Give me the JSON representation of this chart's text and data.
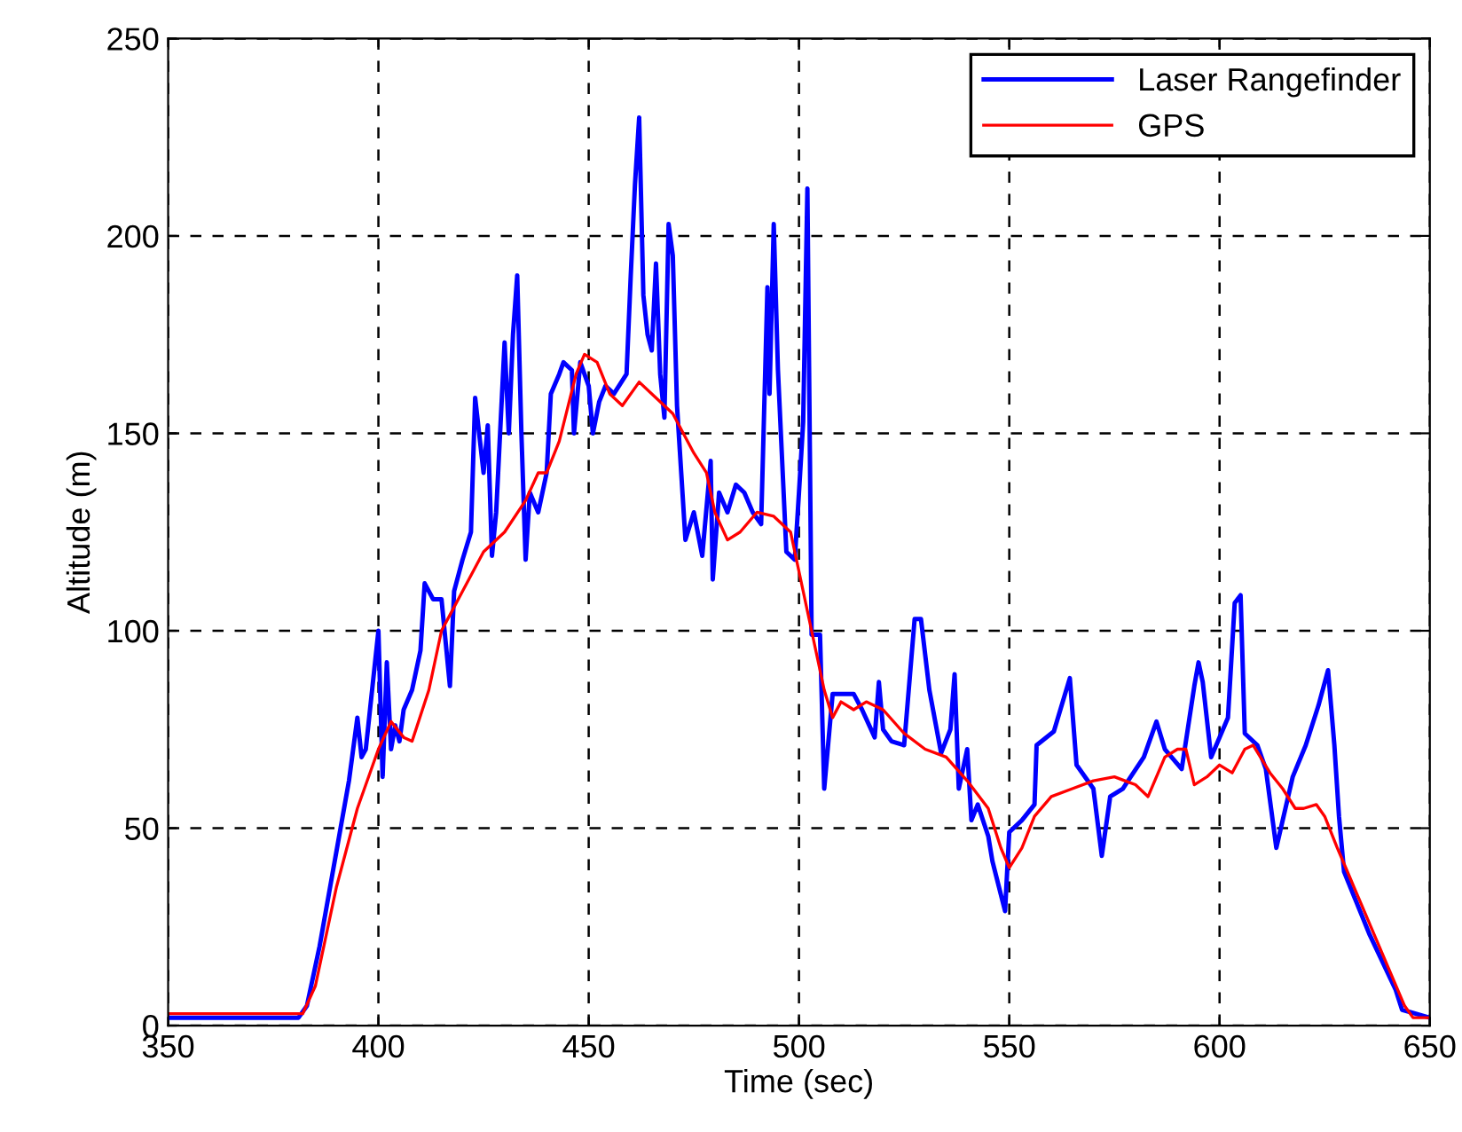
{
  "chart_data": {
    "type": "line",
    "xlabel": "Time (sec)",
    "ylabel": "Altitude (m)",
    "xlim": [
      350,
      650
    ],
    "xticks": [
      350,
      400,
      450,
      500,
      550,
      600,
      650
    ],
    "ylim": [
      0,
      250
    ],
    "yticks": [
      0,
      50,
      100,
      150,
      200,
      250
    ],
    "grid": true,
    "legend": "top right",
    "marker": "none",
    "line_style": "solid",
    "series": [
      {
        "name": "Laser Rangefinder",
        "color": "#0000ff",
        "x": [
          350,
          365,
          381,
          383,
          386,
          389,
          391,
          393,
          394,
          395,
          396,
          397,
          398,
          399,
          400,
          401,
          402,
          403,
          404,
          405,
          406,
          408,
          410,
          411,
          413,
          415,
          417,
          418,
          420,
          422,
          423,
          425,
          426,
          427,
          428,
          430,
          431,
          432,
          433,
          434,
          435,
          436,
          438,
          440,
          441,
          443,
          444,
          446,
          446.5,
          448,
          450,
          451,
          452.5,
          454,
          456,
          459,
          460,
          461,
          462,
          463,
          464,
          465,
          466,
          467,
          468,
          469,
          470,
          471,
          473,
          475,
          477,
          479,
          479.5,
          481,
          483,
          485,
          487,
          489,
          491,
          492.5,
          493,
          494,
          495,
          497,
          499,
          500,
          501,
          502,
          503,
          505,
          506,
          508,
          510,
          513,
          515,
          518,
          519,
          520,
          522,
          525,
          527.5,
          529,
          531,
          533.8,
          536,
          537,
          538,
          540,
          541,
          542.5,
          545,
          546,
          549,
          550,
          553,
          556,
          556.5,
          560.6,
          564.4,
          566,
          570,
          572,
          574,
          577,
          582,
          585,
          587,
          591,
          594,
          595,
          596,
          598,
          602,
          603.6,
          605,
          606,
          609,
          611,
          613.5,
          617.4,
          620.5,
          623.5,
          625.8,
          627.3,
          628.4,
          629.6,
          635.7,
          641.9,
          643.4,
          650
        ],
        "values": [
          2,
          2,
          2,
          5,
          20,
          38,
          50,
          62,
          70,
          78,
          68,
          70,
          80,
          90,
          100,
          63,
          92,
          70,
          76,
          72,
          80,
          85,
          95,
          112,
          108,
          108,
          86,
          110,
          118,
          125,
          159,
          140,
          152,
          119,
          130,
          173,
          150,
          175,
          190,
          150,
          118,
          135,
          130,
          140,
          160,
          165,
          168,
          166,
          150,
          168,
          162,
          150,
          158,
          162,
          160,
          165,
          190,
          213,
          230,
          185,
          175,
          171,
          193,
          165,
          154,
          203,
          195,
          157,
          123,
          130,
          119,
          143,
          113,
          135,
          130,
          137,
          135,
          130,
          127,
          187,
          160,
          203,
          166,
          120,
          118,
          135,
          153,
          212,
          99,
          99,
          60,
          84,
          84,
          84,
          80,
          73,
          87,
          75,
          72,
          71,
          103,
          103,
          85,
          69,
          75,
          89,
          60,
          70,
          52,
          56,
          48,
          41.6,
          29,
          49,
          52,
          56,
          71,
          74.5,
          88,
          66,
          60,
          43,
          58,
          60,
          68,
          77,
          70,
          65,
          86,
          92,
          87,
          68,
          78,
          107,
          109,
          74,
          71,
          65,
          45,
          63,
          71,
          81,
          90,
          71,
          53,
          39,
          23,
          9,
          4,
          2
        ]
      },
      {
        "name": "GPS",
        "color": "#ff0000",
        "x": [
          350,
          380,
          382,
          385,
          390,
          395,
          400,
          403,
          406,
          408,
          412,
          415,
          420,
          425,
          430,
          435,
          438,
          440,
          443,
          447,
          449,
          452,
          455,
          458,
          462,
          465,
          470,
          475,
          478,
          480,
          483,
          486,
          490,
          494,
          498,
          500,
          503,
          506,
          508,
          510,
          513,
          516,
          520,
          525,
          530,
          535,
          540,
          545,
          548,
          550,
          553,
          556,
          560,
          565,
          570,
          575,
          580,
          583,
          587,
          590,
          592,
          594,
          597,
          600,
          603,
          606,
          608,
          612,
          615,
          618,
          620,
          623,
          625,
          628,
          632,
          636,
          640,
          644,
          646,
          650
        ],
        "values": [
          3,
          3,
          3,
          10,
          35,
          55,
          70,
          77,
          73,
          72,
          85,
          100,
          110,
          120,
          125,
          133,
          140,
          140,
          148,
          165,
          170,
          168,
          160,
          157,
          163,
          160,
          155,
          145,
          140,
          130,
          123,
          125,
          130,
          129,
          125,
          115,
          100,
          85,
          78,
          82,
          80,
          82,
          80,
          74,
          70,
          68,
          62,
          55,
          45,
          40,
          45,
          53,
          58,
          60,
          62,
          63,
          61,
          58,
          68,
          70,
          70,
          61,
          63,
          66,
          64,
          70,
          71,
          64,
          60,
          55,
          55,
          56,
          53,
          45,
          35,
          25,
          15,
          5,
          2,
          2
        ]
      }
    ]
  }
}
